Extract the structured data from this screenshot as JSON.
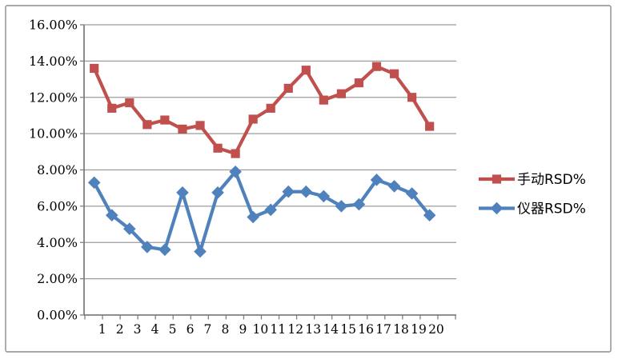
{
  "chart_data": {
    "type": "line",
    "unit": "%",
    "title": "",
    "xlabel": "",
    "ylabel": "",
    "grid": true,
    "legend_position": "right",
    "ylim": [
      0,
      16
    ],
    "y_tick_step": 2,
    "y_tick_labels": [
      "0.00%",
      "2.00%",
      "4.00%",
      "6.00%",
      "8.00%",
      "10.00%",
      "12.00%",
      "14.00%",
      "16.00%"
    ],
    "categories": [
      "1",
      "2",
      "3",
      "4",
      "5",
      "6",
      "7",
      "8",
      "9",
      "10",
      "11",
      "12",
      "13",
      "14",
      "15",
      "16",
      "17",
      "18",
      "19",
      "20"
    ],
    "series": [
      {
        "key": "manual",
        "name": "手动RSD%",
        "marker": "square",
        "color": "#C0504D",
        "values": [
          13.6,
          11.4,
          11.7,
          10.5,
          10.75,
          10.25,
          10.45,
          9.2,
          8.9,
          10.8,
          11.4,
          12.5,
          13.5,
          11.85,
          12.2,
          12.8,
          13.7,
          13.3,
          12.0,
          10.4
        ]
      },
      {
        "key": "instrument",
        "name": "仪器RSD%",
        "marker": "diamond",
        "color": "#4F81BD",
        "values": [
          7.3,
          5.5,
          4.75,
          3.75,
          3.6,
          6.75,
          3.5,
          6.75,
          7.9,
          5.4,
          5.8,
          6.8,
          6.8,
          6.55,
          6.0,
          6.1,
          7.45,
          7.1,
          6.7,
          5.5
        ]
      }
    ]
  },
  "colors": {
    "grid_line": "#9c9c9c",
    "axis_line": "#7f7f7f",
    "tick_mark": "#7f7f7f",
    "frame_border": "#8c8c8c",
    "label_text": "#000000",
    "background": "#ffffff"
  }
}
